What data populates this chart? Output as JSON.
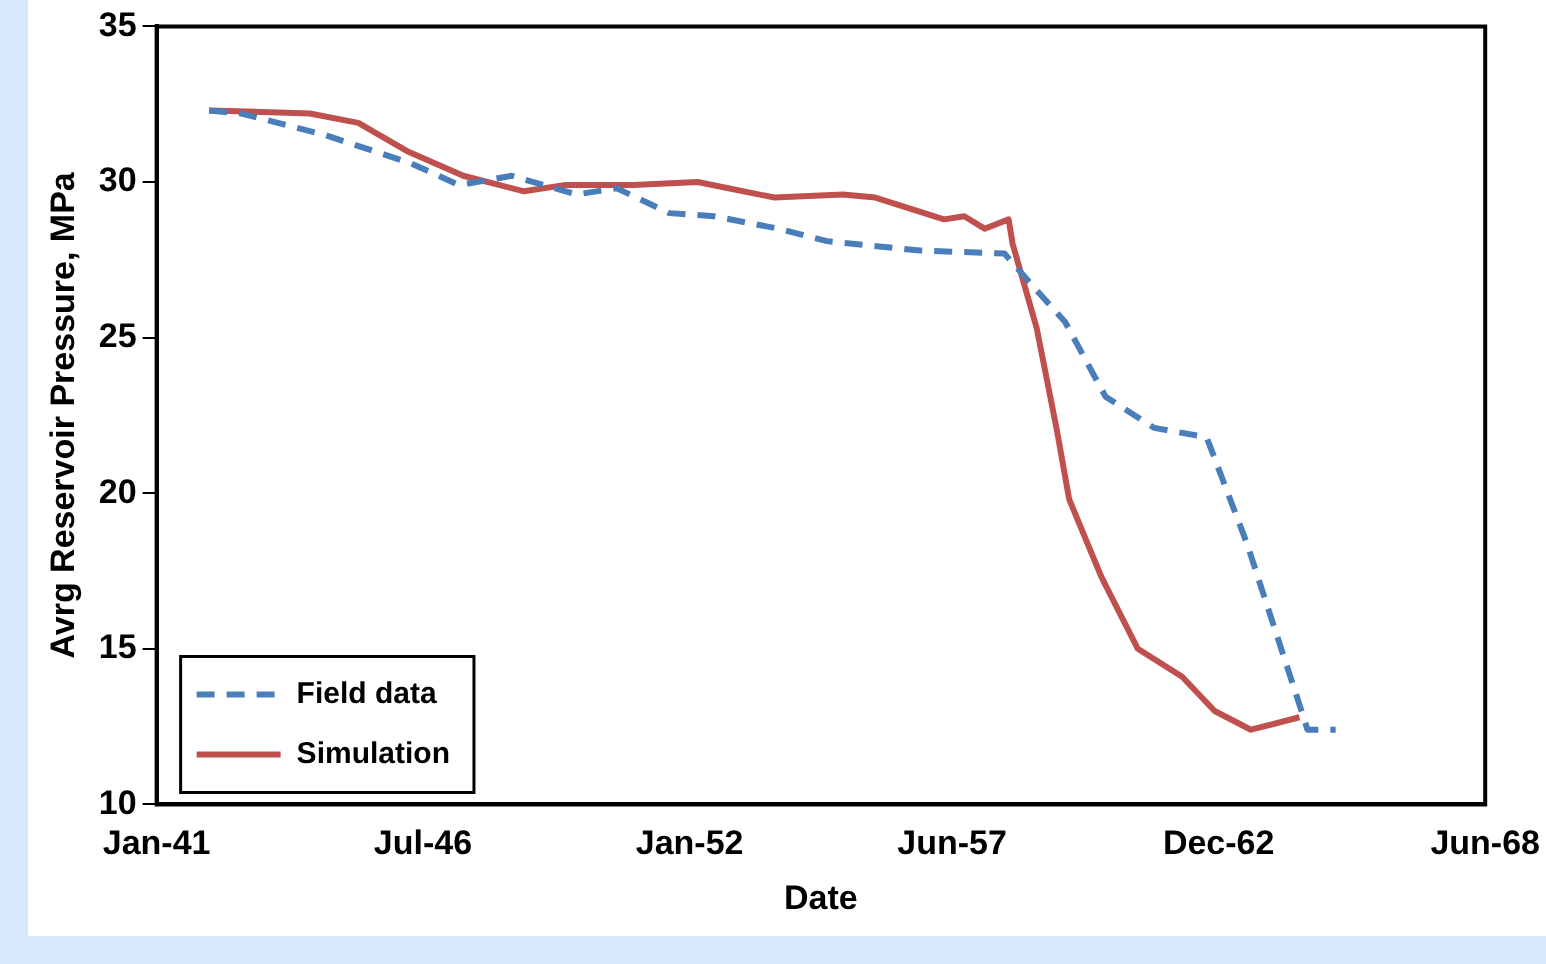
{
  "chart_data": {
    "type": "line",
    "xlabel": "Date",
    "ylabel": "Avrg Reservoir Pressure, MPa",
    "xlim": [
      "1941-01-01",
      "1968-06-01"
    ],
    "xticks": [
      {
        "value": "1941-01-01",
        "label": "Jan-41"
      },
      {
        "value": "1946-07-01",
        "label": "Jul-46"
      },
      {
        "value": "1952-01-01",
        "label": "Jan-52"
      },
      {
        "value": "1957-06-01",
        "label": "Jun-57"
      },
      {
        "value": "1962-12-01",
        "label": "Dec-62"
      },
      {
        "value": "1968-06-01",
        "label": "Jun-68"
      }
    ],
    "ylim": [
      10,
      35
    ],
    "yticks": [
      10,
      15,
      20,
      25,
      30,
      35
    ],
    "grid": false,
    "legend": "bottom left",
    "marker": "none",
    "series": [
      {
        "name": "Field data",
        "color": "#4a7ebb",
        "line_style": "dashed",
        "x": [
          "1942-02",
          "1942-10",
          "1944-07",
          "1946-04",
          "1947-04",
          "1948-05",
          "1949-09",
          "1950-07",
          "1951-08",
          "1952-07",
          "1953-11",
          "1954-11",
          "1956-10",
          "1958-07",
          "1959-01",
          "1959-10",
          "1960-08",
          "1961-08",
          "1962-09",
          "1963-07",
          "1964-09",
          "1964-10",
          "1965-05"
        ],
        "values": [
          32.3,
          32.2,
          31.5,
          30.6,
          29.9,
          30.2,
          29.6,
          29.8,
          29.0,
          28.9,
          28.5,
          28.1,
          27.8,
          27.7,
          26.8,
          25.5,
          23.1,
          22.1,
          21.8,
          18.4,
          12.8,
          12.4,
          12.4
        ]
      },
      {
        "name": "Simulation",
        "color": "#c0504d",
        "line_style": "solid",
        "x": [
          "1942-02",
          "1944-03",
          "1945-03",
          "1946-03",
          "1947-05",
          "1948-08",
          "1949-06",
          "1950-11",
          "1952-03",
          "1953-10",
          "1955-03",
          "1955-11",
          "1957-04",
          "1957-09",
          "1958-02",
          "1958-08",
          "1958-09",
          "1959-03",
          "1959-08",
          "1959-11",
          "1960-07",
          "1961-04",
          "1962-03",
          "1962-11",
          "1963-08",
          "1964-08"
        ],
        "values": [
          32.3,
          32.2,
          31.9,
          31.0,
          30.2,
          29.7,
          29.9,
          29.9,
          30.0,
          29.5,
          29.6,
          29.5,
          28.8,
          28.9,
          28.5,
          28.8,
          28.0,
          25.3,
          22.0,
          19.8,
          17.3,
          15.0,
          14.1,
          13.0,
          12.4,
          12.8
        ]
      }
    ]
  }
}
